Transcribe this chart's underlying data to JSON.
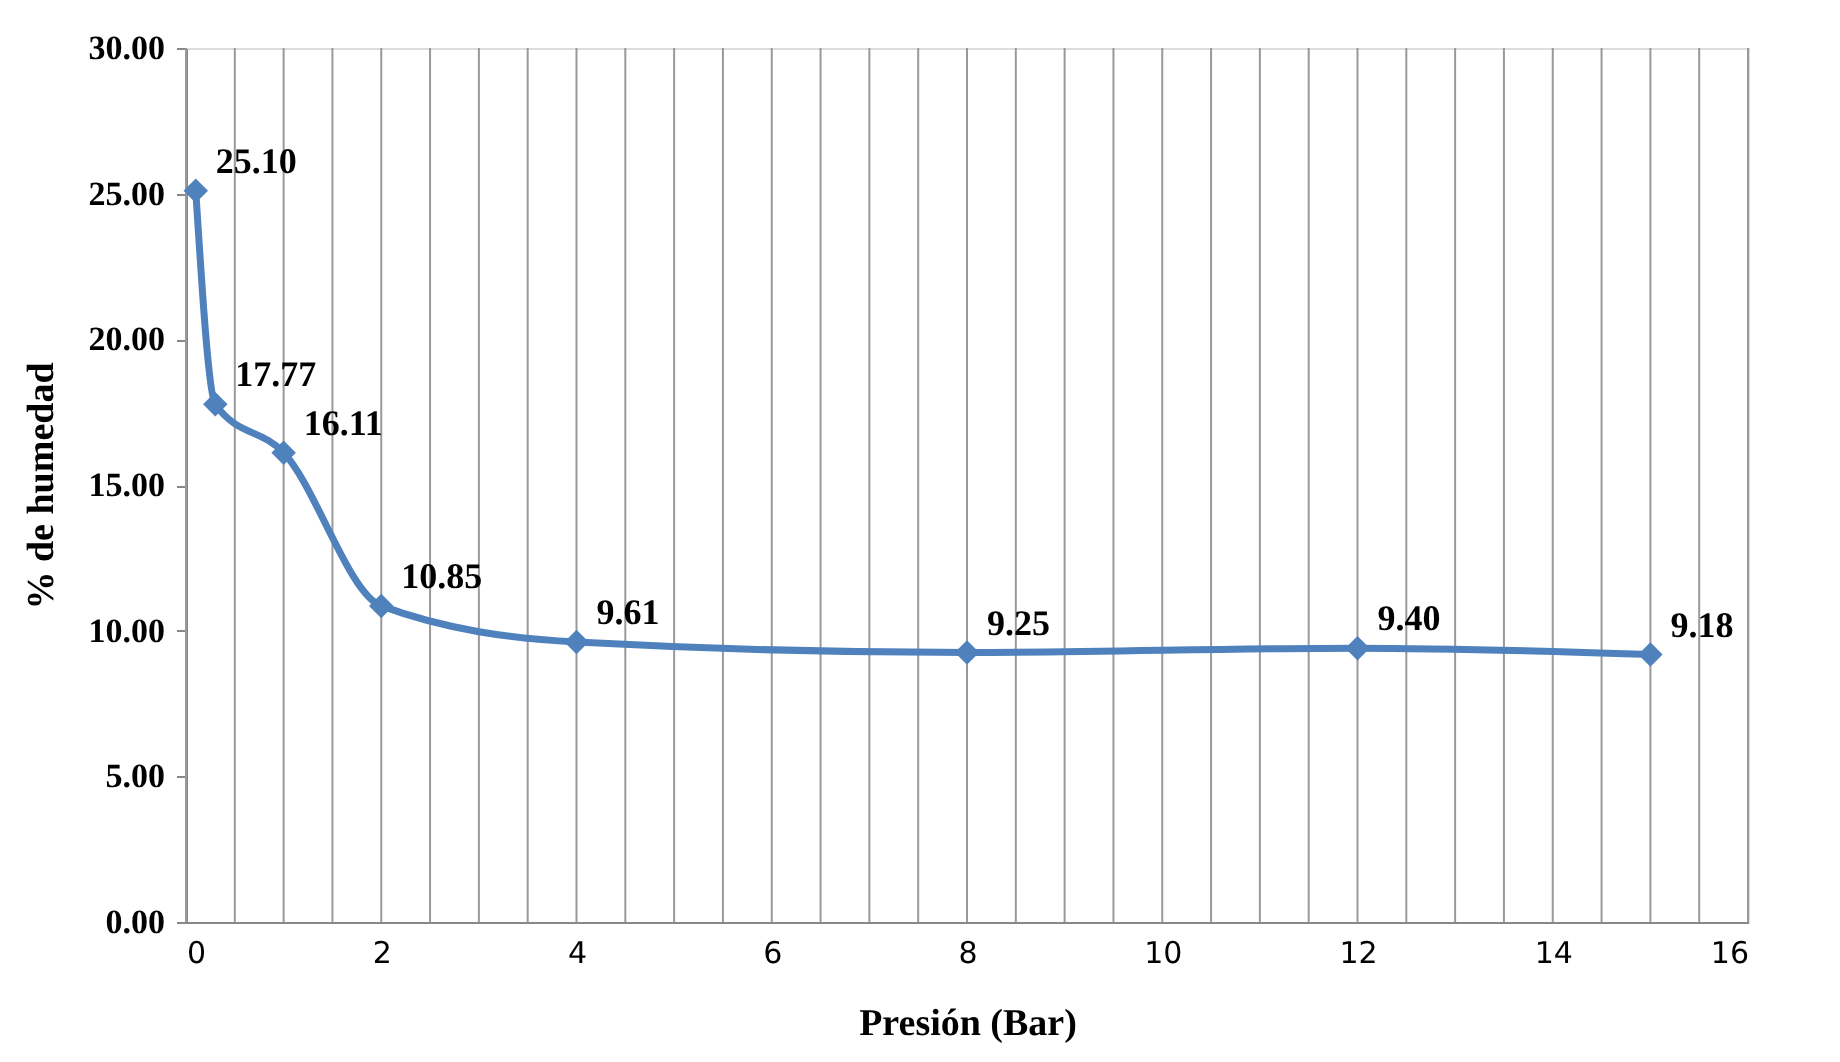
{
  "chart_data": {
    "type": "line",
    "xlabel": "Presión (Bar)",
    "ylabel": "% de humedad",
    "x": [
      0.1,
      0.3,
      1,
      2,
      4,
      8,
      12,
      15
    ],
    "series": [
      {
        "color": "#4f81bd",
        "values": [
          25.1,
          17.77,
          16.11,
          10.85,
          9.61,
          9.25,
          9.4,
          9.18
        ]
      }
    ],
    "value_labels": [
      "25.10",
      "17.77",
      "16.11",
      "10.85",
      "9.61",
      "9.25",
      "9.40",
      "9.18"
    ],
    "marker": "diamond",
    "line_style": "solid",
    "grid": "x",
    "xlim": [
      0,
      16
    ],
    "xticks": [
      0,
      {
        "value": 0.5,
        "label": null
      },
      {
        "value": 1,
        "label": null
      },
      {
        "value": 1.5,
        "label": null
      },
      2,
      {
        "value": 2.5,
        "label": null
      },
      {
        "value": 3,
        "label": null
      },
      {
        "value": 3.5,
        "label": null
      },
      4,
      {
        "value": 4.5,
        "label": null
      },
      {
        "value": 5,
        "label": null
      },
      {
        "value": 5.5,
        "label": null
      },
      6,
      {
        "value": 6.5,
        "label": null
      },
      {
        "value": 7,
        "label": null
      },
      {
        "value": 7.5,
        "label": null
      },
      8,
      {
        "value": 8.5,
        "label": null
      },
      {
        "value": 9,
        "label": null
      },
      {
        "value": 9.5,
        "label": null
      },
      10,
      {
        "value": 10.5,
        "label": null
      },
      {
        "value": 11,
        "label": null
      },
      {
        "value": 11.5,
        "label": null
      },
      12,
      {
        "value": 12.5,
        "label": null
      },
      {
        "value": 13,
        "label": null
      },
      {
        "value": 13.5,
        "label": null
      },
      14,
      {
        "value": 14.5,
        "label": null
      },
      {
        "value": 15,
        "label": null
      },
      {
        "value": 15.5,
        "label": null
      },
      16
    ],
    "ylim": [
      0,
      30
    ],
    "yticks": [
      {
        "value": 0,
        "label": "0.00"
      },
      {
        "value": 5,
        "label": "5.00"
      },
      {
        "value": 10,
        "label": "10.00"
      },
      {
        "value": 15,
        "label": "15.00"
      },
      {
        "value": 20,
        "label": "20.00"
      },
      {
        "value": 25,
        "label": "25.00"
      },
      {
        "value": 30,
        "label": "30.00"
      }
    ]
  }
}
